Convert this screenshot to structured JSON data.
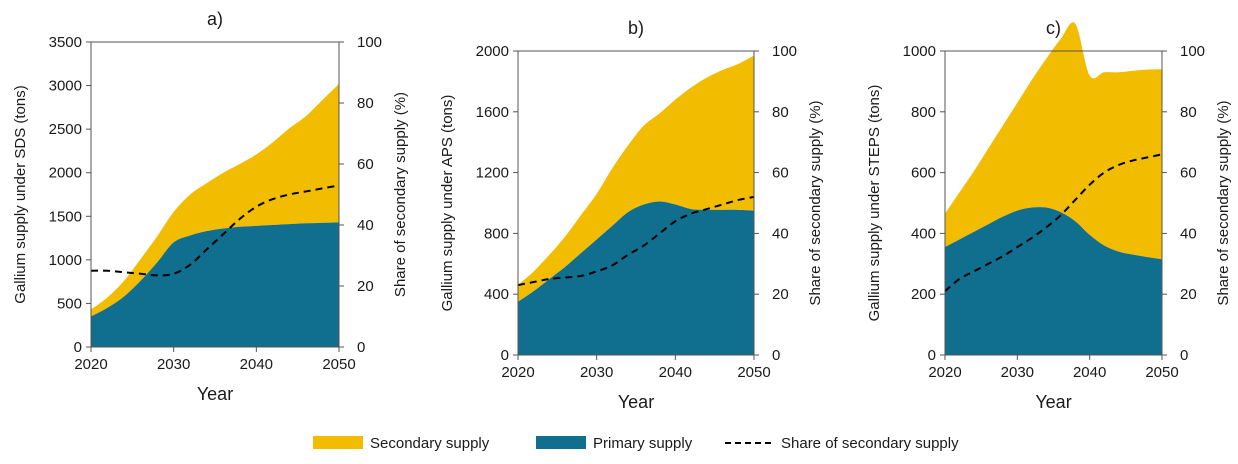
{
  "chart_data": [
    {
      "type": "area",
      "title": "a)",
      "xlabel": "Year",
      "ylabel": "Gallium supply under SDS (tons)",
      "y2label": "Share of secondary supply (%)",
      "xlim": [
        2020,
        2050
      ],
      "xticks": [
        "2020",
        "2030",
        "2040",
        "2050"
      ],
      "ylim": [
        0,
        3500
      ],
      "yticks": [
        "0",
        "500",
        "1000",
        "1500",
        "2000",
        "2500",
        "3000",
        "3500"
      ],
      "y2lim": [
        0,
        100
      ],
      "y2ticks": [
        "0",
        "20",
        "40",
        "60",
        "80",
        "100"
      ],
      "x": [
        2020,
        2022,
        2024,
        2026,
        2028,
        2030,
        2032,
        2034,
        2036,
        2038,
        2040,
        2042,
        2044,
        2046,
        2048,
        2050
      ],
      "series": [
        {
          "name": "Primary supply",
          "axis": "left",
          "values": [
            350,
            450,
            580,
            760,
            970,
            1200,
            1280,
            1330,
            1360,
            1380,
            1390,
            1400,
            1410,
            1420,
            1425,
            1430
          ]
        },
        {
          "name": "Secondary supply",
          "axis": "left",
          "stacked_on": "Primary supply",
          "values": [
            80,
            120,
            180,
            250,
            300,
            350,
            470,
            550,
            640,
            720,
            820,
            950,
            1100,
            1230,
            1410,
            1590
          ]
        },
        {
          "name": "Share of secondary supply",
          "axis": "right",
          "style": "dashed",
          "values": [
            25,
            25,
            24.5,
            24,
            23.5,
            24,
            27,
            32,
            37,
            42,
            46,
            48.5,
            50,
            51,
            52,
            53
          ]
        }
      ]
    },
    {
      "type": "area",
      "title": "b)",
      "xlabel": "Year",
      "ylabel": "Gallium supply under APS (tons)",
      "y2label": "Share of secondary supply (%)",
      "xlim": [
        2020,
        2050
      ],
      "xticks": [
        "2020",
        "2030",
        "2040",
        "2050"
      ],
      "ylim": [
        0,
        2000
      ],
      "yticks": [
        "0",
        "400",
        "800",
        "1200",
        "1600",
        "2000"
      ],
      "y2lim": [
        0,
        100
      ],
      "y2ticks": [
        "0",
        "20",
        "40",
        "60",
        "80",
        "100"
      ],
      "x": [
        2020,
        2022,
        2024,
        2026,
        2028,
        2030,
        2032,
        2034,
        2036,
        2038,
        2040,
        2042,
        2044,
        2046,
        2048,
        2050
      ],
      "series": [
        {
          "name": "Primary supply",
          "axis": "left",
          "values": [
            350,
            420,
            500,
            580,
            670,
            760,
            850,
            940,
            990,
            1010,
            990,
            960,
            955,
            955,
            955,
            950
          ]
        },
        {
          "name": "Secondary supply",
          "axis": "left",
          "stacked_on": "Primary supply",
          "values": [
            110,
            130,
            160,
            200,
            250,
            300,
            380,
            440,
            520,
            580,
            690,
            800,
            870,
            920,
            960,
            1020
          ]
        },
        {
          "name": "Share of secondary supply",
          "axis": "right",
          "style": "dashed",
          "values": [
            23,
            24,
            25,
            25.5,
            26,
            27.5,
            29.5,
            33,
            36,
            40,
            44,
            46.5,
            48,
            49.5,
            51,
            52
          ]
        }
      ]
    },
    {
      "type": "area",
      "title": "c)",
      "xlabel": "Year",
      "ylabel": "Gallium supply under STEPS (tons)",
      "y2label": "Share of secondary supply (%)",
      "xlim": [
        2020,
        2050
      ],
      "xticks": [
        "2020",
        "2030",
        "2040",
        "2050"
      ],
      "ylim": [
        0,
        1000
      ],
      "yticks": [
        "0",
        "200",
        "400",
        "600",
        "800",
        "1000"
      ],
      "y2lim": [
        0,
        100
      ],
      "y2ticks": [
        "0",
        "20",
        "40",
        "60",
        "80",
        "100"
      ],
      "x": [
        2020,
        2022,
        2024,
        2026,
        2028,
        2030,
        2032,
        2034,
        2036,
        2038,
        2040,
        2042,
        2044,
        2046,
        2048,
        2050
      ],
      "series": [
        {
          "name": "Primary supply",
          "axis": "left",
          "values": [
            355,
            380,
            405,
            430,
            455,
            475,
            485,
            485,
            470,
            440,
            395,
            360,
            340,
            330,
            322,
            315
          ]
        },
        {
          "name": "Secondary supply",
          "axis": "left",
          "stacked_on": "Primary supply",
          "values": [
            110,
            155,
            200,
            250,
            300,
            355,
            420,
            490,
            570,
            650,
            525,
            570,
            590,
            605,
            617,
            625
          ]
        },
        {
          "name": "Share of secondary supply",
          "axis": "right",
          "style": "dashed",
          "values": [
            21,
            25,
            27.5,
            30,
            32.5,
            35.5,
            38.5,
            42,
            46,
            51,
            56,
            60,
            62.5,
            64,
            65,
            66
          ]
        }
      ]
    }
  ],
  "legend": {
    "placement": "bottom-center",
    "items": [
      {
        "label": "Secondary supply",
        "type": "patch",
        "color": "#f2bd00"
      },
      {
        "label": "Primary supply",
        "type": "patch",
        "color": "#106e8f"
      },
      {
        "label": "Share of secondary supply",
        "type": "dashed-line",
        "color": "#000000"
      }
    ]
  },
  "colors": {
    "secondary": "#f2bd00",
    "primary": "#106e8f",
    "share_line": "#000000",
    "axis": "#555555"
  }
}
